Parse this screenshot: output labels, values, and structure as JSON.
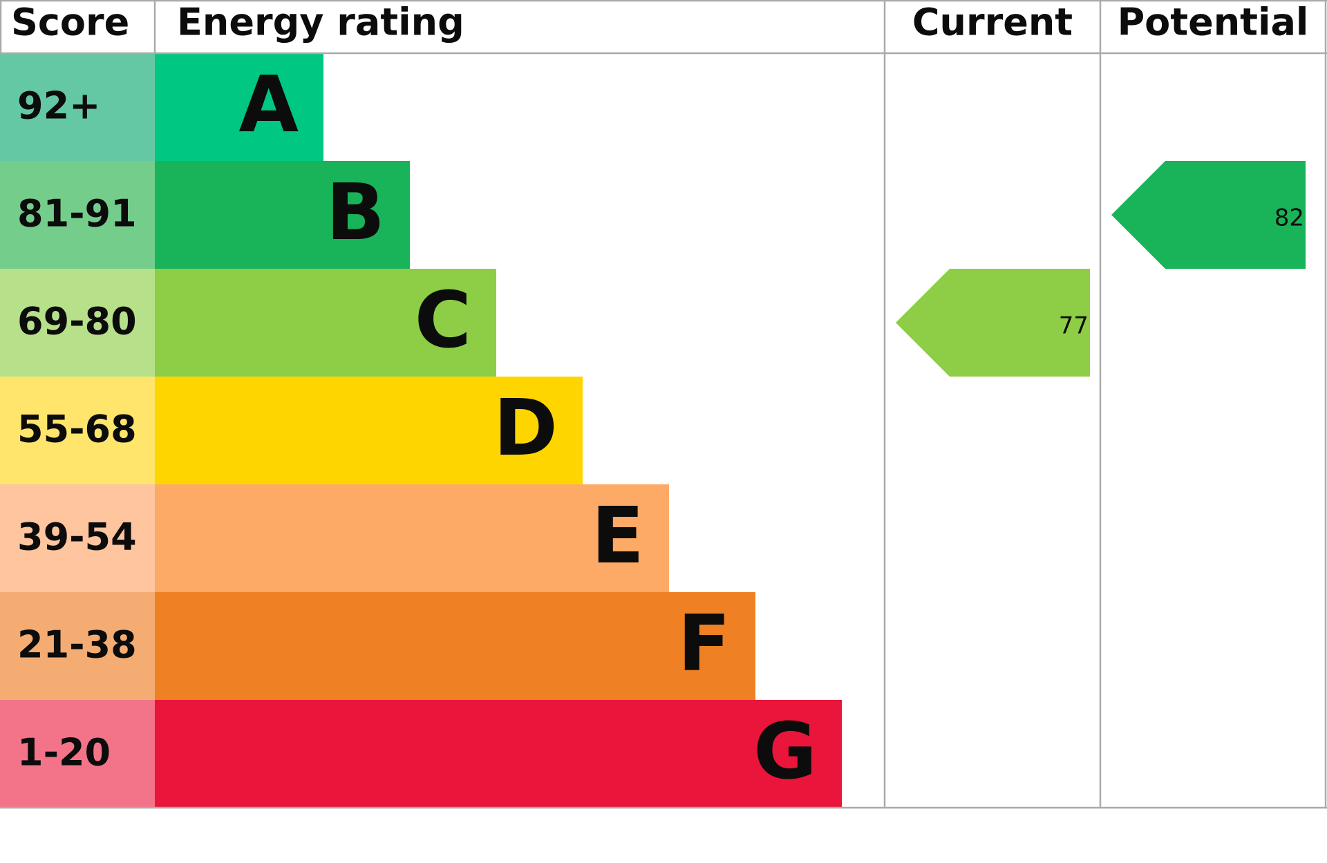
{
  "header": {
    "score": "Score",
    "rating": "Energy rating",
    "current": "Current",
    "potential": "Potential"
  },
  "bands": [
    {
      "score": {
        "min": 92,
        "label": "92+"
      },
      "letter": "A",
      "color": "#00c781",
      "score_color": "#64c8a5"
    },
    {
      "score": {
        "min": 81,
        "max": 91,
        "label": "81-91"
      },
      "letter": "B",
      "color": "#19b459",
      "score_color": "#75cd8b"
    },
    {
      "score": {
        "min": 69,
        "max": 80,
        "label": "69-80"
      },
      "letter": "C",
      "color": "#8dce46",
      "score_color": "#b6e08a"
    },
    {
      "score": {
        "min": 55,
        "max": 68,
        "label": "55-68"
      },
      "letter": "D",
      "color": "#ffd500",
      "score_color": "#ffe56b"
    },
    {
      "score": {
        "min": 39,
        "max": 54,
        "label": "39-54"
      },
      "letter": "E",
      "color": "#fcaa65",
      "score_color": "#fec59e"
    },
    {
      "score": {
        "min": 21,
        "max": 38,
        "label": "21-38"
      },
      "letter": "F",
      "color": "#ef8023",
      "score_color": "#f4ac72"
    },
    {
      "score": {
        "min": 1,
        "max": 20,
        "label": "1-20"
      },
      "letter": "G",
      "color": "#e9153b",
      "score_color": "#f37489"
    }
  ],
  "current": 77,
  "potential": 82
}
